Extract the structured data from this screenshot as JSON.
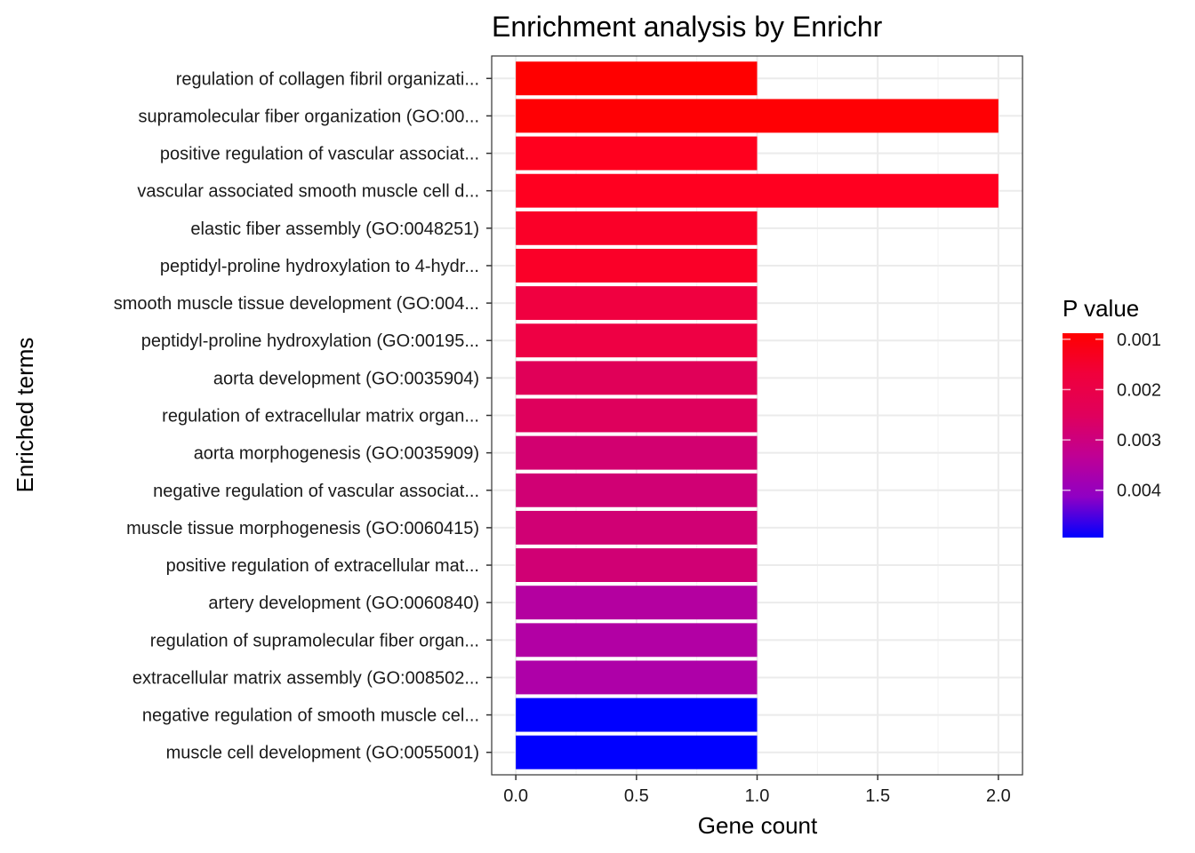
{
  "chart_data": {
    "type": "bar",
    "orientation": "horizontal",
    "title": "Enrichment analysis by Enrichr",
    "xlabel": "Gene count",
    "ylabel": "Enriched terms",
    "xlim": [
      -0.1,
      2.1
    ],
    "xticks": [
      0.0,
      0.5,
      1.0,
      1.5,
      2.0
    ],
    "xtick_labels": [
      "0.0",
      "0.5",
      "1.0",
      "1.5",
      "2.0"
    ],
    "grid": true,
    "categories": [
      "regulation of collagen fibril organizati...",
      "supramolecular fiber organization (GO:00...",
      "positive regulation of vascular associat...",
      "vascular associated smooth muscle cell d...",
      "elastic fiber assembly (GO:0048251)",
      "peptidyl-proline hydroxylation to 4-hydr...",
      "smooth muscle tissue development (GO:004...",
      "peptidyl-proline hydroxylation (GO:00195...",
      "aorta development (GO:0035904)",
      "regulation of extracellular matrix organ...",
      "aorta morphogenesis (GO:0035909)",
      "negative regulation of vascular associat...",
      "muscle tissue morphogenesis (GO:0060415)",
      "positive regulation of extracellular mat...",
      "artery development (GO:0060840)",
      "regulation of supramolecular fiber organ...",
      "extracellular matrix assembly (GO:008502...",
      "negative regulation of smooth muscle cel...",
      "muscle cell development (GO:0055001)"
    ],
    "values": [
      1,
      2,
      1,
      2,
      1,
      1,
      1,
      1,
      1,
      1,
      1,
      1,
      1,
      1,
      1,
      1,
      1,
      1,
      1
    ],
    "p_values": [
      0.00088,
      0.0009,
      0.00125,
      0.0013,
      0.0014,
      0.0014,
      0.0017,
      0.0018,
      0.0021,
      0.0022,
      0.0025,
      0.0026,
      0.0026,
      0.0026,
      0.0031,
      0.0031,
      0.0032,
      0.0049,
      0.0049
    ],
    "bar_colors": [
      "#FF0000",
      "#FF0004",
      "#FF001E",
      "#FF0020",
      "#FA0028",
      "#FA0028",
      "#F00040",
      "#EE0044",
      "#E00058",
      "#DE005C",
      "#D20070",
      "#D00074",
      "#D00074",
      "#D00074",
      "#B400A0",
      "#B200A4",
      "#AE00A8",
      "#0000FF",
      "#0000FF"
    ],
    "legend": {
      "title": "P value",
      "placement": "right",
      "ticks": [
        0.001,
        0.002,
        0.003,
        0.004
      ],
      "tick_labels": [
        "0.001",
        "0.002",
        "0.003",
        "0.004"
      ],
      "range": [
        0.00088,
        0.00494
      ],
      "low_color": "#FF0000",
      "high_color": "#0000FF",
      "gradient_stops": [
        "#FF0000",
        "#F0003C",
        "#E0005C",
        "#C00094",
        "#9000C4",
        "#0000FF"
      ]
    }
  }
}
